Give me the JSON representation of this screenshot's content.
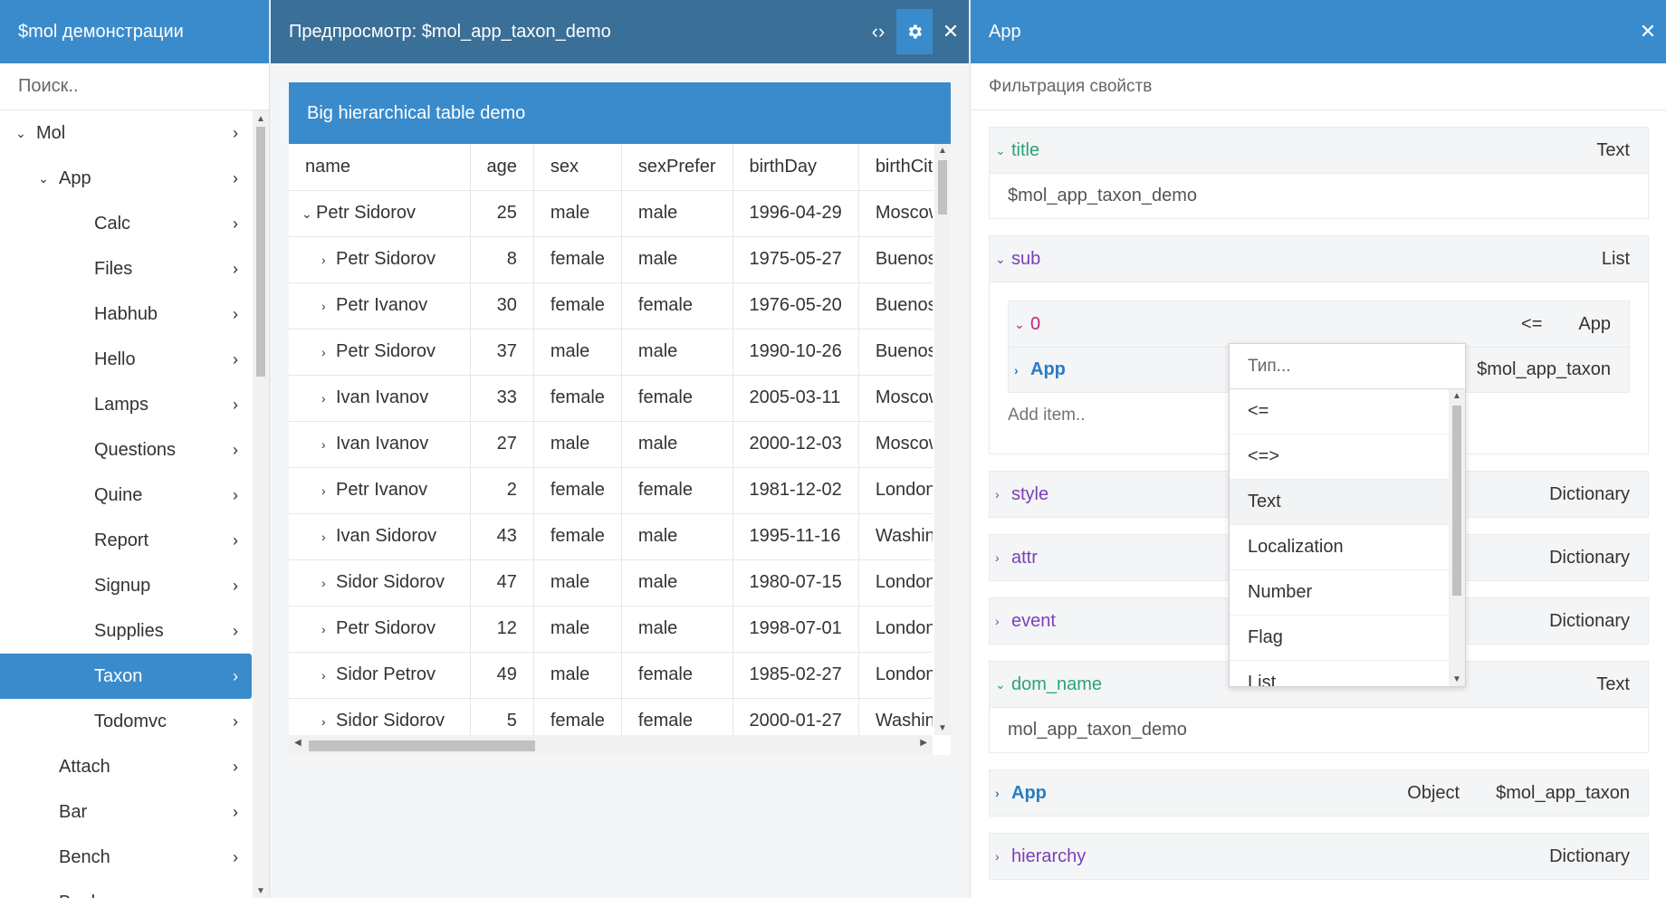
{
  "nav": {
    "title": "$mol демонстрации",
    "search_placeholder": "Поиск..",
    "items": [
      {
        "label": "Mol",
        "level": 0,
        "open": true
      },
      {
        "label": "App",
        "level": 1,
        "open": true
      },
      {
        "label": "Calc",
        "level": 2
      },
      {
        "label": "Files",
        "level": 2
      },
      {
        "label": "Habhub",
        "level": 2
      },
      {
        "label": "Hello",
        "level": 2
      },
      {
        "label": "Lamps",
        "level": 2
      },
      {
        "label": "Questions",
        "level": 2
      },
      {
        "label": "Quine",
        "level": 2
      },
      {
        "label": "Report",
        "level": 2
      },
      {
        "label": "Signup",
        "level": 2
      },
      {
        "label": "Supplies",
        "level": 2
      },
      {
        "label": "Taxon",
        "level": 2,
        "selected": true
      },
      {
        "label": "Todomvc",
        "level": 2
      },
      {
        "label": "Attach",
        "level": 1
      },
      {
        "label": "Bar",
        "level": 1
      },
      {
        "label": "Bench",
        "level": 1
      },
      {
        "label": "Book",
        "level": 1
      }
    ]
  },
  "preview": {
    "title": "Предпросмотр: $mol_app_taxon_demo",
    "code_icon": "‹›",
    "settings_icon": "gear-icon",
    "close_icon": "✕",
    "demo_title": "Big hierarchical table demo",
    "columns": [
      "name",
      "age",
      "sex",
      "sexPrefer",
      "birthDay",
      "birthCity"
    ],
    "rows": [
      {
        "expanded": true,
        "indent": 0,
        "name": "Petr Sidorov",
        "age": "25",
        "sex": "male",
        "sexPrefer": "male",
        "birthDay": "1996-04-29",
        "city": "Moscow"
      },
      {
        "indent": 1,
        "name": "Petr Sidorov",
        "age": "8",
        "sex": "female",
        "sexPrefer": "male",
        "birthDay": "1975-05-27",
        "city": "Buenos Aires"
      },
      {
        "indent": 1,
        "name": "Petr Ivanov",
        "age": "30",
        "sex": "female",
        "sexPrefer": "female",
        "birthDay": "1976-05-20",
        "city": "Buenos Aires"
      },
      {
        "indent": 1,
        "name": "Petr Sidorov",
        "age": "37",
        "sex": "male",
        "sexPrefer": "male",
        "birthDay": "1990-10-26",
        "city": "Buenos Aires"
      },
      {
        "indent": 1,
        "name": "Ivan Ivanov",
        "age": "33",
        "sex": "female",
        "sexPrefer": "female",
        "birthDay": "2005-03-11",
        "city": "Moscow"
      },
      {
        "indent": 1,
        "name": "Ivan Ivanov",
        "age": "27",
        "sex": "male",
        "sexPrefer": "male",
        "birthDay": "2000-12-03",
        "city": "Moscow"
      },
      {
        "indent": 1,
        "name": "Petr Ivanov",
        "age": "2",
        "sex": "female",
        "sexPrefer": "female",
        "birthDay": "1981-12-02",
        "city": "London"
      },
      {
        "indent": 1,
        "name": "Ivan Sidorov",
        "age": "43",
        "sex": "female",
        "sexPrefer": "male",
        "birthDay": "1995-11-16",
        "city": "Washington"
      },
      {
        "indent": 1,
        "name": "Sidor Sidorov",
        "age": "47",
        "sex": "male",
        "sexPrefer": "male",
        "birthDay": "1980-07-15",
        "city": "London"
      },
      {
        "indent": 1,
        "name": "Petr Sidorov",
        "age": "12",
        "sex": "male",
        "sexPrefer": "male",
        "birthDay": "1998-07-01",
        "city": "London"
      },
      {
        "indent": 1,
        "name": "Sidor Petrov",
        "age": "49",
        "sex": "male",
        "sexPrefer": "female",
        "birthDay": "1985-02-27",
        "city": "London"
      },
      {
        "indent": 1,
        "name": "Sidor Sidorov",
        "age": "5",
        "sex": "female",
        "sexPrefer": "female",
        "birthDay": "2000-01-27",
        "city": "Washington"
      }
    ]
  },
  "inspector": {
    "title": "App",
    "close_icon": "✕",
    "filter_placeholder": "Фильтрация свойств",
    "props": {
      "title": {
        "key": "title",
        "type": "Text",
        "value": "$mol_app_taxon_demo"
      },
      "sub": {
        "key": "sub",
        "type": "List"
      },
      "sub_item": {
        "key": "0",
        "op": "<=",
        "type": "App"
      },
      "sub_app": {
        "key": "App",
        "value": "$mol_app_taxon"
      },
      "add_item_placeholder": "Add item..",
      "style": {
        "key": "style",
        "type": "Dictionary"
      },
      "attr": {
        "key": "attr",
        "type": "Dictionary"
      },
      "event": {
        "key": "event",
        "type": "Dictionary"
      },
      "dom_name": {
        "key": "dom_name",
        "type": "Text",
        "value": "mol_app_taxon_demo"
      },
      "app": {
        "key": "App",
        "type": "Object",
        "value": "$mol_app_taxon"
      },
      "hierarchy": {
        "key": "hierarchy",
        "type": "Dictionary"
      }
    },
    "type_picker": {
      "placeholder": "Тип...",
      "options": [
        "<=",
        "<=>",
        "Text",
        "Localization",
        "Number",
        "Flag",
        "List"
      ],
      "highlighted": "Text"
    }
  },
  "colors": {
    "accent": "#3a8bcb",
    "header_dark": "#3a6f97",
    "key_green": "#2aa37a",
    "key_purple": "#7b3fb8",
    "key_blue": "#2b7cc4"
  }
}
